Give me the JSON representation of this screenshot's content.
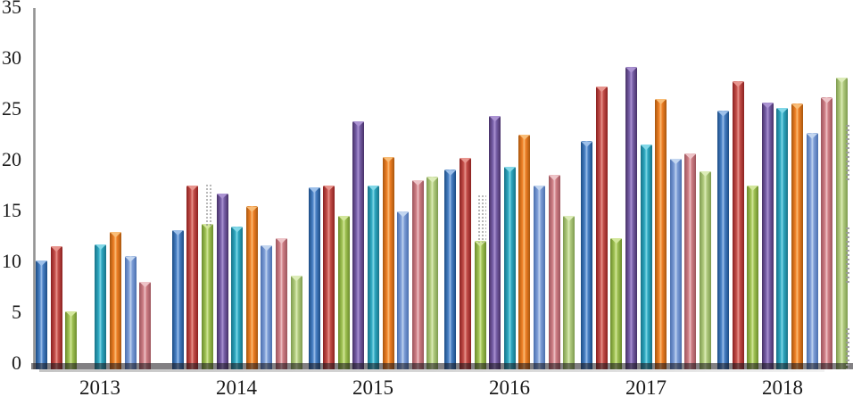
{
  "chart_data": {
    "type": "bar",
    "title": "",
    "xlabel": "",
    "ylabel": "",
    "categories": [
      "2013",
      "2014",
      "2015",
      "2016",
      "2017",
      "2018"
    ],
    "series": [
      {
        "name": "blue",
        "color": "#4a82c6",
        "color_dark": "#1b4c85",
        "color_cap": "#9dc0ea",
        "values": [
          10.1,
          13.1,
          17.3,
          19.0,
          21.8,
          24.8
        ]
      },
      {
        "name": "dark-red",
        "color": "#c5504b",
        "color_dark": "#8b201f",
        "color_cap": "#e8958e",
        "values": [
          11.5,
          17.5,
          17.5,
          20.2,
          27.2,
          27.7
        ]
      },
      {
        "name": "yellow-green",
        "color": "#a2c455",
        "color_dark": "#6b8c2c",
        "color_cap": "#d3e79c",
        "values": [
          5.1,
          13.7,
          14.5,
          12.0,
          12.3,
          17.5
        ]
      },
      {
        "name": "purple",
        "color": "#7a62ab",
        "color_dark": "#473067",
        "color_cap": "#ab93d2",
        "values": [
          0,
          16.7,
          23.8,
          24.3,
          29.1,
          25.6
        ]
      },
      {
        "name": "teal",
        "color": "#2fa9c2",
        "color_dark": "#177287",
        "color_cap": "#82d8e8",
        "values": [
          11.7,
          13.4,
          17.5,
          19.3,
          21.5,
          25.1
        ]
      },
      {
        "name": "orange",
        "color": "#f08127",
        "color_dark": "#a9560d",
        "color_cap": "#f9bd77",
        "values": [
          12.9,
          15.4,
          20.3,
          22.5,
          26.0,
          25.5
        ]
      },
      {
        "name": "light-blue",
        "color": "#7f9fd8",
        "color_dark": "#4a6fae",
        "color_cap": "#c3d6f0",
        "values": [
          10.5,
          11.6,
          14.9,
          17.5,
          20.1,
          22.6
        ]
      },
      {
        "name": "rose",
        "color": "#d08087",
        "color_dark": "#9c545c",
        "color_cap": "#eec4c8",
        "values": [
          8.0,
          12.3,
          18.0,
          18.5,
          20.6,
          26.1
        ]
      },
      {
        "name": "light-green",
        "color": "#b3cd80",
        "color_dark": "#7d9a4e",
        "color_cap": "#dcecb8",
        "values": [
          0,
          8.6,
          18.3,
          14.5,
          18.9,
          28.1
        ]
      }
    ],
    "ylim": [
      0,
      35
    ],
    "yticks": [
      0,
      5,
      10,
      15,
      20,
      25,
      30,
      35
    ],
    "grid": false,
    "legend_position": "none",
    "bar_style": "3d-cylinder",
    "layout": {
      "axis_color": "#8c8c8c",
      "text_color": "#1a1a1a",
      "background_color": "#ffffff"
    }
  }
}
